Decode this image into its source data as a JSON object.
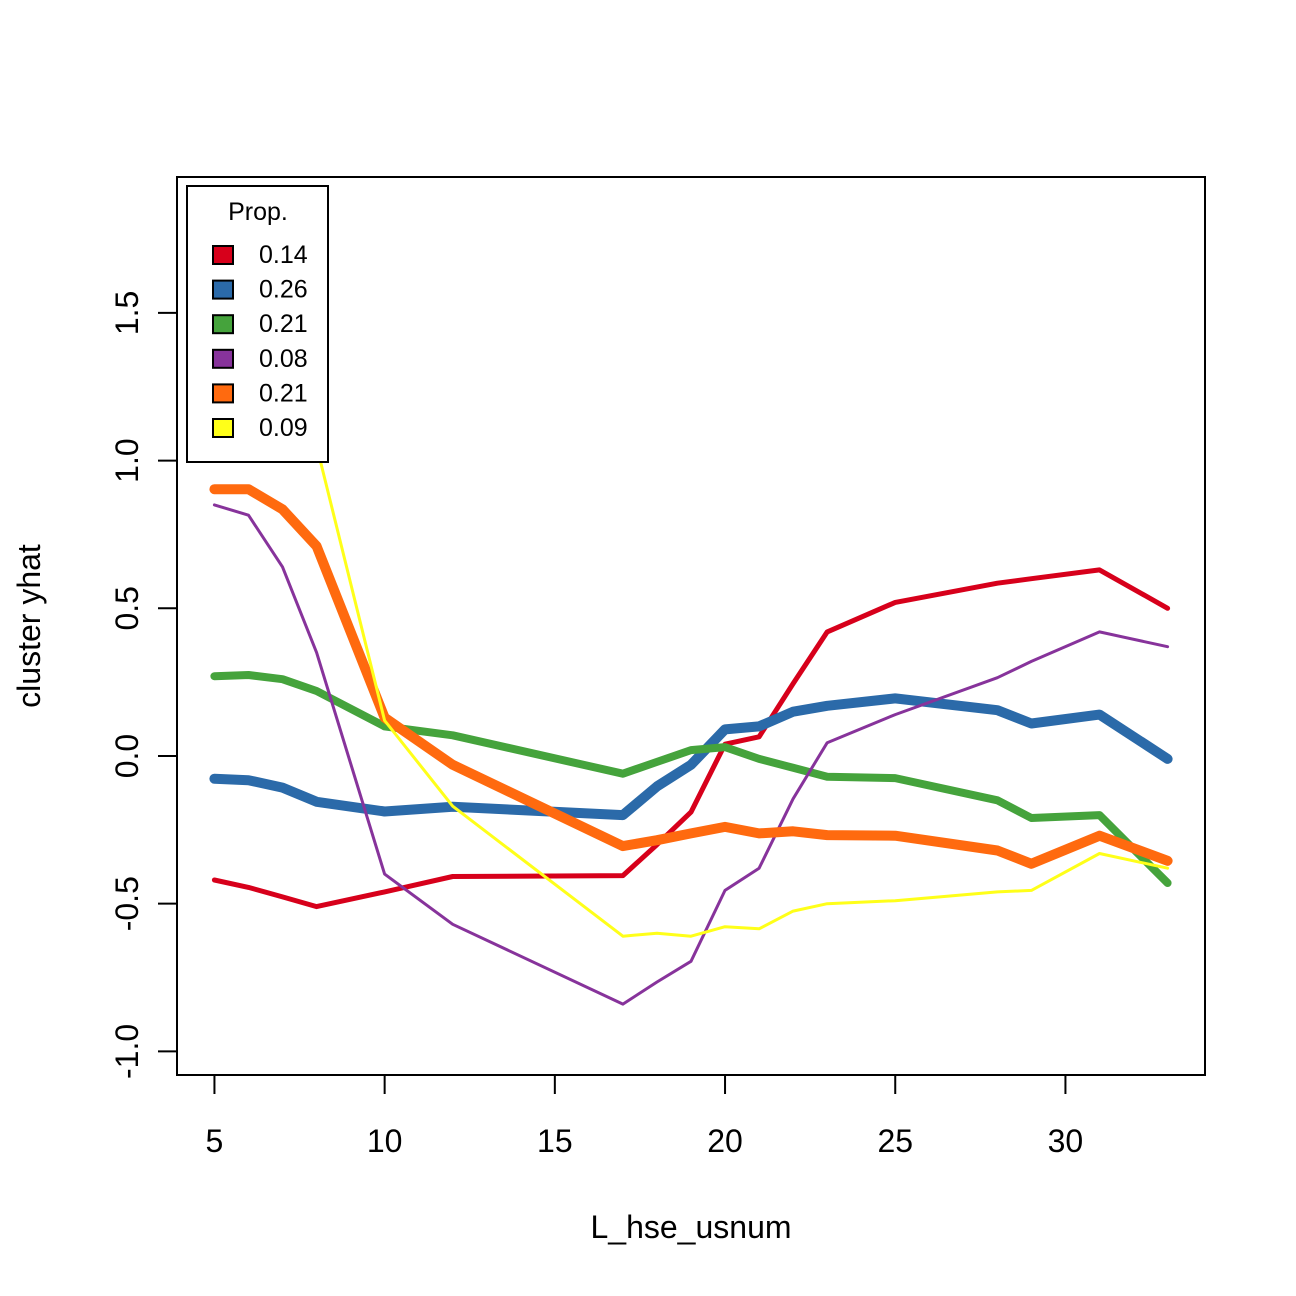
{
  "chart_data": {
    "type": "line",
    "title": "",
    "xlabel": "L_hse_usnum",
    "ylabel": "cluster yhat",
    "xlim": [
      3.9,
      34.1
    ],
    "ylim": [
      -1.08,
      1.96
    ],
    "xticks": [
      5,
      10,
      15,
      20,
      25,
      30
    ],
    "yticks": [
      -1.0,
      -0.5,
      0.0,
      0.5,
      1.0,
      1.5
    ],
    "ytick_labels": [
      "-1.0",
      "-0.5",
      "0.0",
      "0.5",
      "1.0",
      "1.5"
    ],
    "grid": false,
    "legend": {
      "title": "Prop.",
      "position": "top-left"
    },
    "x": [
      5,
      6,
      7,
      8,
      10,
      12,
      17,
      18,
      19,
      20,
      21,
      22,
      23,
      25,
      28,
      29,
      31,
      33
    ],
    "series": [
      {
        "name": "0.14",
        "color": "#d7001b",
        "width": 5,
        "values": [
          -0.42,
          -0.445,
          -0.477,
          -0.51,
          -0.46,
          -0.408,
          -0.405,
          -0.3,
          -0.19,
          0.04,
          0.065,
          0.245,
          0.42,
          0.52,
          0.585,
          0.6,
          0.63,
          0.5
        ]
      },
      {
        "name": "0.26",
        "color": "#2b6aa9",
        "width": 10,
        "values": [
          -0.077,
          -0.082,
          -0.107,
          -0.155,
          -0.188,
          -0.172,
          -0.2,
          -0.103,
          -0.03,
          0.09,
          0.1,
          0.15,
          0.17,
          0.195,
          0.155,
          0.11,
          0.14,
          -0.01
        ]
      },
      {
        "name": "0.21",
        "color": "#45a33c",
        "width": 8,
        "values": [
          0.27,
          0.274,
          0.26,
          0.22,
          0.1,
          0.07,
          -0.06,
          -0.02,
          0.02,
          0.03,
          -0.01,
          -0.04,
          -0.07,
          -0.075,
          -0.15,
          -0.21,
          -0.2,
          -0.43
        ]
      },
      {
        "name": "0.08",
        "color": "#87339b",
        "width": 3,
        "values": [
          0.85,
          0.815,
          0.64,
          0.35,
          -0.4,
          -0.57,
          -0.84,
          -0.765,
          -0.695,
          -0.455,
          -0.38,
          -0.145,
          0.045,
          0.14,
          0.265,
          0.32,
          0.42,
          0.37
        ]
      },
      {
        "name": "0.21",
        "color": "#ff6a0f",
        "width": 10,
        "values": [
          0.903,
          0.903,
          0.835,
          0.71,
          0.13,
          -0.03,
          -0.305,
          -0.285,
          -0.262,
          -0.24,
          -0.262,
          -0.255,
          -0.268,
          -0.27,
          -0.32,
          -0.365,
          -0.27,
          -0.355
        ]
      },
      {
        "name": "0.09",
        "color": "#ffff19",
        "width": 3,
        "values": [
          null,
          null,
          null,
          1.05,
          0.12,
          -0.17,
          -0.61,
          -0.6,
          -0.61,
          -0.578,
          -0.585,
          -0.525,
          -0.5,
          -0.49,
          -0.46,
          -0.455,
          -0.33,
          -0.38
        ]
      }
    ]
  }
}
